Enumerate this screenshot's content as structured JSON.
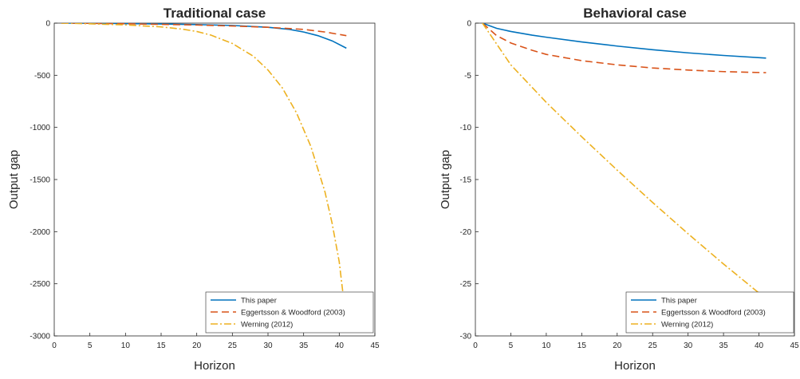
{
  "chart_data": [
    {
      "type": "line",
      "title": "Traditional case",
      "xlabel": "Horizon",
      "ylabel": "Output gap",
      "xlim": [
        0,
        45
      ],
      "ylim": [
        -3000,
        0
      ],
      "xticks": [
        "0",
        "5",
        "10",
        "15",
        "20",
        "25",
        "30",
        "35",
        "40",
        "45"
      ],
      "yticks": [
        "0",
        "-500",
        "-1000",
        "-1500",
        "-2000",
        "-2500",
        "-3000"
      ],
      "grid": false,
      "legend_position": "bottom-right",
      "series": [
        {
          "name": "This paper",
          "color": "#0072BD",
          "dash": "solid",
          "x": [
            1,
            5,
            10,
            15,
            20,
            25,
            30,
            33,
            35,
            37,
            39,
            41
          ],
          "y": [
            0,
            -1,
            -4,
            -8,
            -14,
            -22,
            -40,
            -60,
            -85,
            -120,
            -170,
            -240
          ]
        },
        {
          "name": "Eggertsson & Woodford (2003)",
          "color": "#D95319",
          "dash": "dashed",
          "x": [
            1,
            5,
            10,
            15,
            20,
            25,
            30,
            35,
            38,
            41
          ],
          "y": [
            0,
            -2,
            -6,
            -12,
            -18,
            -27,
            -40,
            -60,
            -85,
            -120
          ]
        },
        {
          "name": "Werning (2012)",
          "color": "#EDB120",
          "dash": "dashdot",
          "x": [
            1,
            5,
            10,
            15,
            18,
            20,
            22,
            25,
            28,
            30,
            32,
            34,
            36,
            38,
            39,
            40,
            40.5
          ],
          "y": [
            0,
            -6,
            -17,
            -36,
            -58,
            -80,
            -115,
            -195,
            -320,
            -450,
            -620,
            -860,
            -1180,
            -1620,
            -1920,
            -2290,
            -2580
          ]
        }
      ]
    },
    {
      "type": "line",
      "title": "Behavioral case",
      "xlabel": "Horizon",
      "ylabel": "Output gap",
      "xlim": [
        0,
        45
      ],
      "ylim": [
        -30,
        0
      ],
      "xticks": [
        "0",
        "5",
        "10",
        "15",
        "20",
        "25",
        "30",
        "35",
        "40",
        "45"
      ],
      "yticks": [
        "0",
        "-5",
        "-10",
        "-15",
        "-20",
        "-25",
        "-30"
      ],
      "grid": false,
      "legend_position": "bottom-right",
      "series": [
        {
          "name": "This paper",
          "color": "#0072BD",
          "dash": "solid",
          "x": [
            1,
            3,
            5,
            8,
            10,
            15,
            20,
            25,
            30,
            35,
            41
          ],
          "y": [
            0,
            -0.5,
            -0.8,
            -1.15,
            -1.35,
            -1.8,
            -2.2,
            -2.55,
            -2.85,
            -3.1,
            -3.35
          ]
        },
        {
          "name": "Eggertsson & Woodford (2003)",
          "color": "#D95319",
          "dash": "dashed",
          "x": [
            1,
            3,
            5,
            8,
            10,
            15,
            20,
            25,
            30,
            35,
            41
          ],
          "y": [
            0,
            -1.2,
            -1.9,
            -2.6,
            -3.0,
            -3.6,
            -4.0,
            -4.3,
            -4.5,
            -4.65,
            -4.75
          ]
        },
        {
          "name": "Werning (2012)",
          "color": "#EDB120",
          "dash": "dashdot",
          "x": [
            1,
            5,
            10,
            15,
            20,
            25,
            30,
            35,
            40.2
          ],
          "y": [
            0,
            -4.0,
            -7.6,
            -10.9,
            -14.1,
            -17.2,
            -20.2,
            -23.1,
            -26.0
          ]
        }
      ]
    }
  ]
}
